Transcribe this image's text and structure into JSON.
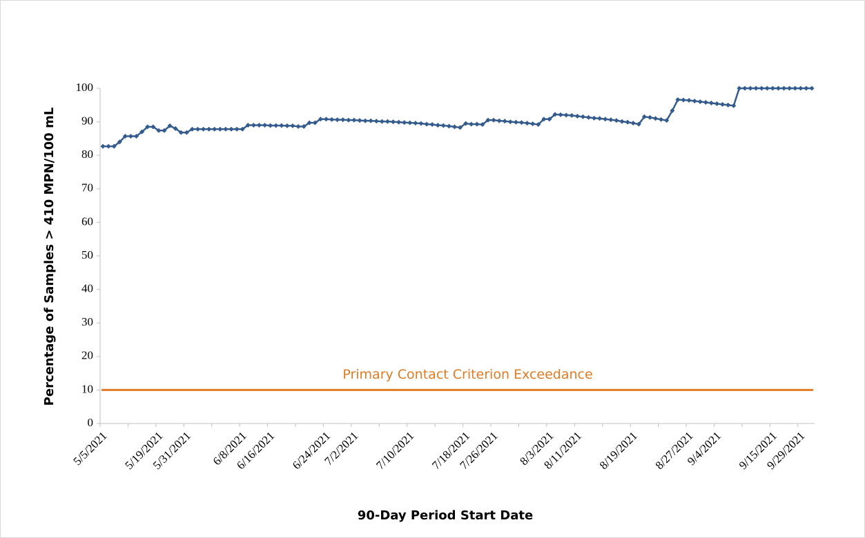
{
  "chart_data": {
    "type": "line",
    "x_label": "90-Day Period Start Date",
    "y_label": "Percentage of Samples > 410 MPN/100 mL",
    "categories": [
      "5/5/2021",
      null,
      null,
      null,
      null,
      null,
      null,
      null,
      null,
      null,
      "5/19/2021",
      null,
      null,
      null,
      null,
      "5/31/2021",
      null,
      null,
      null,
      null,
      null,
      null,
      null,
      null,
      null,
      "6/8/2021",
      null,
      null,
      null,
      null,
      "6/16/2021",
      null,
      null,
      null,
      null,
      null,
      null,
      null,
      null,
      null,
      "6/24/2021",
      null,
      null,
      null,
      null,
      "7/2/2021",
      null,
      null,
      null,
      null,
      null,
      null,
      null,
      null,
      null,
      "7/10/2021",
      null,
      null,
      null,
      null,
      null,
      null,
      null,
      null,
      null,
      "7/18/2021",
      null,
      null,
      null,
      null,
      "7/26/2021",
      null,
      null,
      null,
      null,
      null,
      null,
      null,
      null,
      null,
      "8/3/2021",
      null,
      null,
      null,
      null,
      "8/11/2021",
      null,
      null,
      null,
      null,
      null,
      null,
      null,
      null,
      null,
      "8/19/2021",
      null,
      null,
      null,
      null,
      null,
      null,
      null,
      null,
      null,
      "8/27/2021",
      null,
      null,
      null,
      null,
      "9/4/2021",
      null,
      null,
      null,
      null,
      null,
      null,
      null,
      null,
      null,
      "9/15/2021",
      null,
      null,
      null,
      null,
      "9/29/2021",
      null,
      null
    ],
    "series": [
      {
        "color": "#335b8e",
        "values": [
          82.7,
          82.7,
          82.7,
          84.0,
          85.7,
          85.7,
          85.7,
          87.0,
          88.5,
          88.5,
          87.4,
          87.4,
          88.8,
          88.0,
          86.8,
          86.8,
          87.8,
          87.8,
          87.8,
          87.8,
          87.8,
          87.8,
          87.8,
          87.8,
          87.8,
          87.8,
          89.0,
          89.0,
          89.0,
          89.0,
          88.9,
          88.9,
          88.9,
          88.8,
          88.8,
          88.6,
          88.6,
          89.7,
          89.7,
          90.8,
          90.8,
          90.7,
          90.6,
          90.6,
          90.5,
          90.5,
          90.4,
          90.3,
          90.3,
          90.2,
          90.1,
          90.1,
          90.0,
          89.9,
          89.8,
          89.7,
          89.6,
          89.5,
          89.3,
          89.2,
          89.0,
          88.9,
          88.7,
          88.5,
          88.3,
          89.5,
          89.3,
          89.3,
          89.2,
          90.5,
          90.5,
          90.3,
          90.2,
          90.0,
          89.9,
          89.8,
          89.6,
          89.4,
          89.2,
          90.8,
          90.8,
          92.2,
          92.1,
          92.0,
          91.9,
          91.7,
          91.5,
          91.3,
          91.1,
          91.0,
          90.8,
          90.6,
          90.4,
          90.1,
          89.9,
          89.6,
          89.3,
          91.5,
          91.3,
          91.0,
          90.7,
          90.4,
          93.3,
          96.6,
          96.5,
          96.4,
          96.2,
          96.0,
          95.8,
          95.6,
          95.4,
          95.2,
          95.0,
          94.8,
          100,
          100,
          100,
          100,
          100,
          100,
          100,
          100,
          100,
          100,
          100,
          100,
          100,
          100
        ]
      }
    ],
    "reference_line": {
      "value": 10,
      "label": "Primary Contact Criterion Exceedance",
      "color": "#e07b24"
    },
    "ylim": [
      0,
      100
    ],
    "yticks": [
      0,
      10,
      20,
      30,
      40,
      50,
      60,
      70,
      80,
      90,
      100
    ],
    "grid": false
  }
}
